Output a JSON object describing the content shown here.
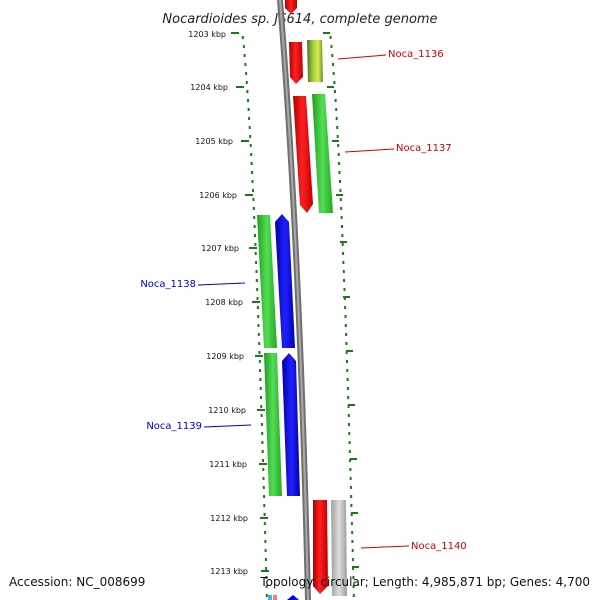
{
  "title": "Nocardioides sp. JS614, complete genome",
  "footer": {
    "accession": "Accession: NC_008699",
    "summary": "Topology: circular; Length: 4,985,871 bp; Genes: 4,700"
  },
  "ticks": [
    "1203 kbp",
    "1204 kbp",
    "1205 kbp",
    "1206 kbp",
    "1207 kbp",
    "1208 kbp",
    "1209 kbp",
    "1210 kbp",
    "1211 kbp",
    "1212 kbp",
    "1213 kbp"
  ],
  "genes": [
    {
      "label": "Noca_1136",
      "strand": "forward"
    },
    {
      "label": "Noca_1137",
      "strand": "forward"
    },
    {
      "label": "Noca_1138",
      "strand": "reverse"
    },
    {
      "label": "Noca_1139",
      "strand": "reverse"
    },
    {
      "label": "Noca_1140",
      "strand": "forward"
    }
  ],
  "colors": {
    "backbone": "#808080",
    "dots": "#1a7a1a",
    "red": "#ff0000",
    "green": "#33cc33",
    "blue": "#0000ee",
    "forward_label": "#cc0000",
    "reverse_label": "#0000cc"
  }
}
